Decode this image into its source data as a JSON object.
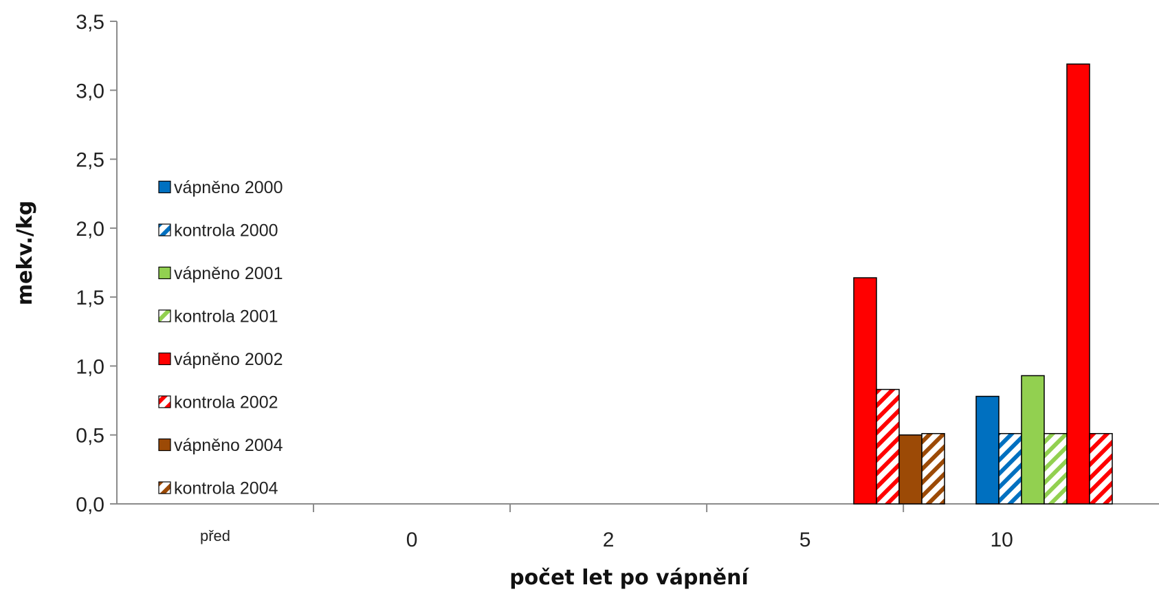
{
  "chart_data": {
    "type": "bar",
    "title": "",
    "xlabel": "počet let po vápnění",
    "ylabel": "mekv./kg",
    "ylim": [
      0,
      3.5
    ],
    "y_ticks": [
      "0,0",
      "0,5",
      "1,0",
      "1,5",
      "2,0",
      "2,5",
      "3,0",
      "3,5"
    ],
    "categories": [
      "před",
      "0",
      "2",
      "5",
      "10"
    ],
    "legend_position": "left",
    "grid": false,
    "series": [
      {
        "name": "vápněno 2000",
        "color": "#0070C0",
        "pattern": "solid",
        "values": [
          null,
          null,
          null,
          null,
          0.78
        ]
      },
      {
        "name": "kontrola 2000",
        "color": "#0070C0",
        "pattern": "hatched",
        "values": [
          null,
          null,
          null,
          null,
          0.51
        ]
      },
      {
        "name": "vápněno 2001",
        "color": "#92D050",
        "pattern": "solid",
        "values": [
          null,
          null,
          null,
          null,
          0.93
        ]
      },
      {
        "name": "kontrola 2001",
        "color": "#92D050",
        "pattern": "hatched",
        "values": [
          null,
          null,
          null,
          null,
          0.51
        ]
      },
      {
        "name": "vápněno 2002",
        "color": "#FF0000",
        "pattern": "solid",
        "values": [
          null,
          null,
          null,
          1.64,
          3.19
        ]
      },
      {
        "name": "kontrola 2002",
        "color": "#FF0000",
        "pattern": "hatched",
        "values": [
          null,
          null,
          null,
          0.83,
          0.51
        ]
      },
      {
        "name": "vápněno 2004",
        "color": "#9C4A06",
        "pattern": "solid",
        "values": [
          null,
          null,
          null,
          0.5,
          null
        ]
      },
      {
        "name": "kontrola 2004",
        "color": "#9C4A06",
        "pattern": "hatched",
        "values": [
          null,
          null,
          null,
          0.51,
          null
        ]
      }
    ]
  }
}
